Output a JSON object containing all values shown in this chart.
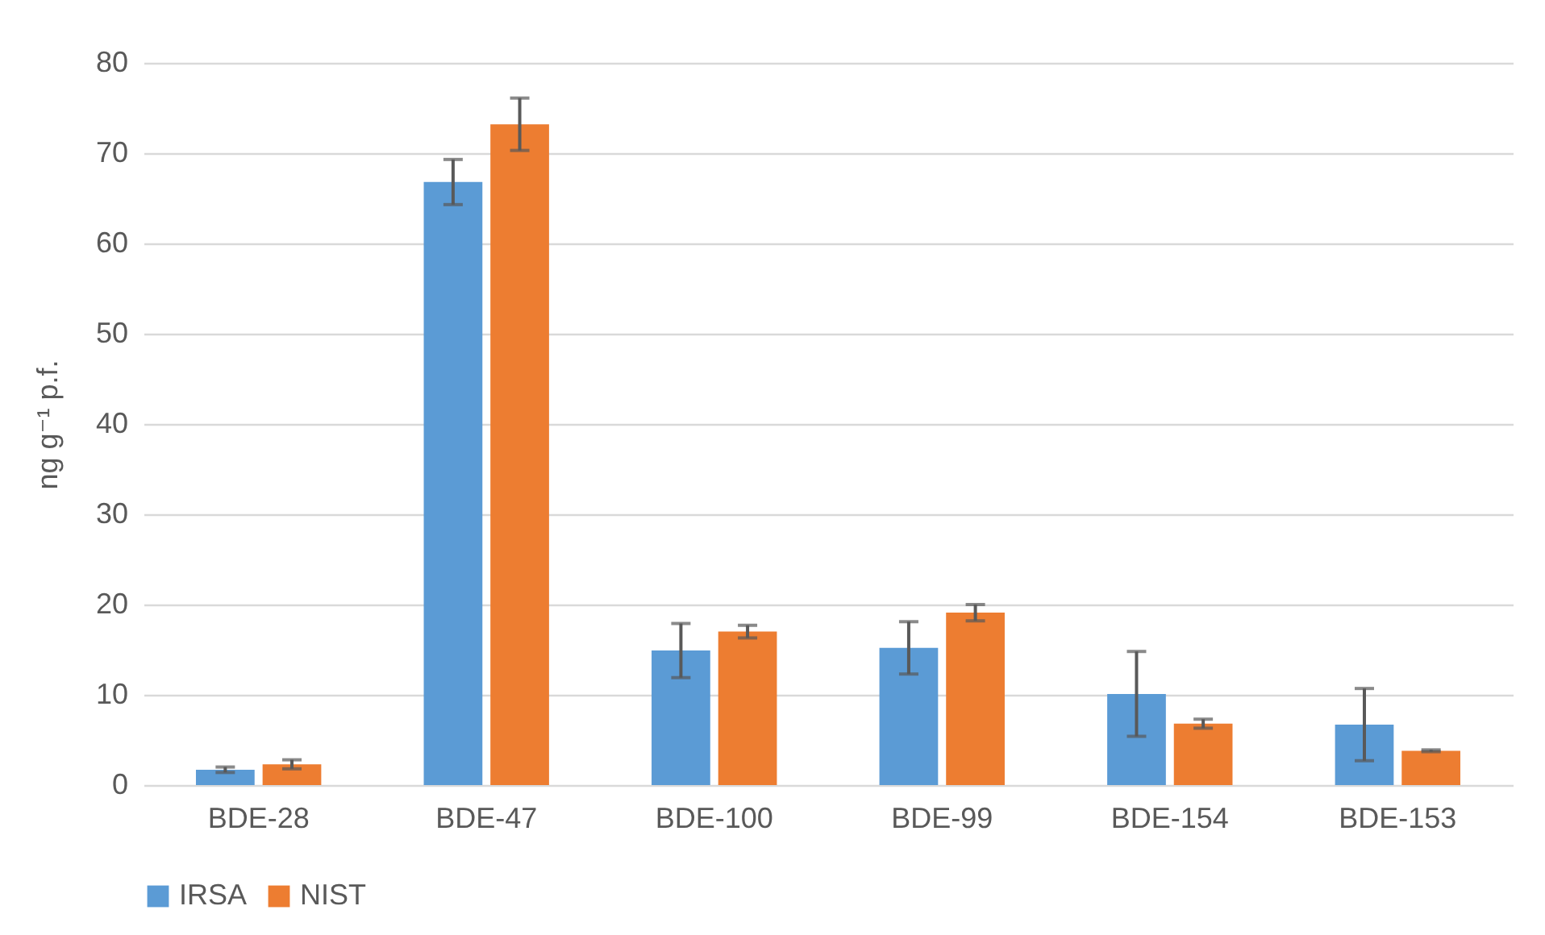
{
  "chart_data": {
    "type": "bar",
    "ylabel": "ng g⁻¹ p.f.",
    "categories": [
      "BDE-28",
      "BDE-47",
      "BDE-100",
      "BDE-99",
      "BDE-154",
      "BDE-153"
    ],
    "series": [
      {
        "name": "IRSA",
        "color": "#5b9bd5",
        "values": [
          1.7,
          66.8,
          14.9,
          15.2,
          10.1,
          6.7
        ],
        "errors": [
          0.3,
          2.5,
          3,
          2.9,
          4.7,
          4
        ]
      },
      {
        "name": "NIST",
        "color": "#ed7d31",
        "values": [
          2.3,
          73.2,
          17.0,
          19.1,
          6.8,
          3.8
        ],
        "errors": [
          0.5,
          2.9,
          0.7,
          0.9,
          0.5,
          0.1
        ]
      }
    ],
    "ylim": [
      0,
      80
    ],
    "yticks": [
      0,
      10,
      20,
      30,
      40,
      50,
      60,
      70,
      80
    ],
    "grid": "y",
    "legend": "bottom"
  }
}
